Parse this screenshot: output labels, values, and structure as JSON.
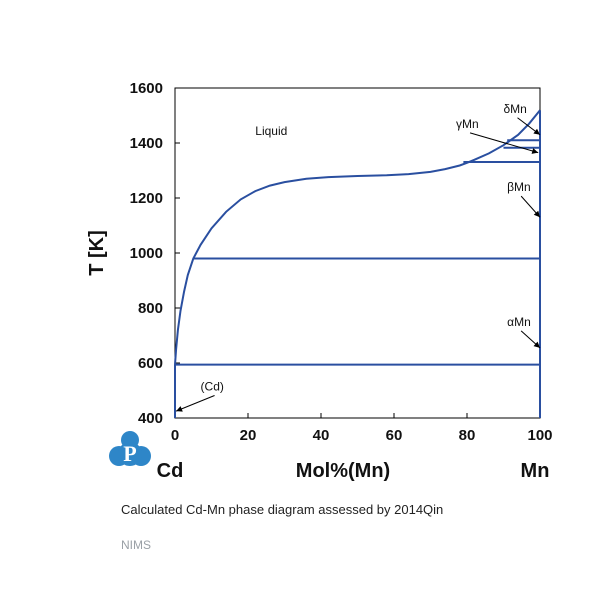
{
  "chart_data": {
    "type": "line",
    "title": "",
    "xlabel": "Mol%(Mn)",
    "ylabel": "T [K]",
    "xlim": [
      0,
      100
    ],
    "ylim": [
      400,
      1600
    ],
    "x_ticks": [
      "0",
      "20",
      "40",
      "60",
      "80",
      "100"
    ],
    "y_ticks": [
      "400",
      "600",
      "800",
      "1000",
      "1200",
      "1400",
      "1600"
    ],
    "x_end_labels": {
      "left": "Cd",
      "right": "Mn"
    },
    "grid": false,
    "series": [
      {
        "label": "liquidus-low",
        "points": [
          [
            0,
            594
          ],
          [
            0.3,
            650
          ],
          [
            0.8,
            720
          ],
          [
            1.5,
            790
          ],
          [
            2.5,
            860
          ],
          [
            3.5,
            920
          ],
          [
            5,
            980
          ],
          [
            7,
            1030
          ],
          [
            10,
            1090
          ],
          [
            14,
            1150
          ],
          [
            18,
            1195
          ],
          [
            22,
            1225
          ],
          [
            26,
            1245
          ],
          [
            30,
            1258
          ],
          [
            36,
            1270
          ],
          [
            42,
            1276
          ],
          [
            50,
            1280
          ],
          [
            58,
            1283
          ],
          [
            64,
            1287
          ],
          [
            70,
            1295
          ],
          [
            74,
            1305
          ],
          [
            78,
            1318
          ],
          [
            80,
            1328
          ],
          [
            82,
            1339
          ],
          [
            86,
            1362
          ],
          [
            90,
            1392
          ],
          [
            94,
            1430
          ],
          [
            97,
            1470
          ],
          [
            100,
            1519
          ]
        ]
      },
      {
        "label": "monotectic-980",
        "points": [
          [
            5,
            980
          ],
          [
            100,
            980
          ]
        ]
      },
      {
        "label": "eutectic-594",
        "points": [
          [
            0,
            594
          ],
          [
            100,
            594
          ]
        ]
      },
      {
        "label": "transition-1330",
        "points": [
          [
            79,
            1331
          ],
          [
            100,
            1331
          ]
        ]
      },
      {
        "label": "transition-1410",
        "points": [
          [
            91,
            1410
          ],
          [
            100,
            1410
          ]
        ]
      },
      {
        "label": "transition-1383",
        "points": [
          [
            90,
            1383
          ],
          [
            100,
            1383
          ]
        ]
      },
      {
        "label": "Mn-side",
        "points": [
          [
            100,
            400
          ],
          [
            100,
            1519
          ]
        ]
      },
      {
        "label": "Cd-side",
        "points": [
          [
            0,
            400
          ],
          [
            0,
            594
          ]
        ]
      }
    ],
    "annotations": [
      {
        "text": "Liquid",
        "x": 22,
        "y": 1430,
        "arrow_to": null
      },
      {
        "text": "δMn",
        "x": 90,
        "y": 1510,
        "arrow_to": [
          100,
          1430
        ]
      },
      {
        "text": "γMn",
        "x": 77,
        "y": 1455,
        "arrow_to": [
          99.5,
          1365
        ]
      },
      {
        "text": "βMn",
        "x": 91,
        "y": 1225,
        "arrow_to": [
          100,
          1130
        ]
      },
      {
        "text": "αMn",
        "x": 91,
        "y": 735,
        "arrow_to": [
          100,
          655
        ]
      },
      {
        "text": "(Cd)",
        "x": 7,
        "y": 500,
        "arrow_to": [
          0.3,
          425
        ]
      }
    ]
  },
  "caption": "Calculated Cd-Mn phase diagram assessed by 2014Qin",
  "source": "NIMS",
  "logo_letter": "P",
  "colors": {
    "phase_line": "#2a4fa0",
    "logo": "#2e86c8",
    "source_text": "#9aa0a6"
  }
}
